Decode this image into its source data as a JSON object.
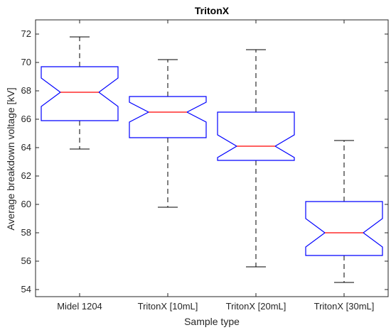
{
  "chart_data": {
    "type": "boxplot",
    "title": "TritonX",
    "xlabel": "Sample type",
    "ylabel": "Average breakdown voltage [kV]",
    "ylim": [
      53.5,
      73
    ],
    "yticks": [
      54,
      56,
      58,
      60,
      62,
      64,
      66,
      68,
      70,
      72
    ],
    "notched": true,
    "grid": false,
    "categories": [
      "Midel 1204",
      "TritonX [10mL]",
      "TritonX [20mL]",
      "TritonX [30mL]"
    ],
    "boxes": [
      {
        "category": "Midel 1204",
        "whisker_low": 63.9,
        "q1": 65.9,
        "median": 67.9,
        "q3": 69.7,
        "whisker_high": 71.8,
        "notch_low": 66.9,
        "notch_high": 68.9
      },
      {
        "category": "TritonX [10mL]",
        "whisker_low": 59.8,
        "q1": 64.7,
        "median": 66.5,
        "q3": 67.6,
        "whisker_high": 70.2,
        "notch_low": 65.8,
        "notch_high": 67.2
      },
      {
        "category": "TritonX [20mL]",
        "whisker_low": 55.6,
        "q1": 63.1,
        "median": 64.1,
        "q3": 66.5,
        "whisker_high": 70.9,
        "notch_low": 63.3,
        "notch_high": 64.9
      },
      {
        "category": "TritonX [30mL]",
        "whisker_low": 54.5,
        "q1": 56.4,
        "median": 58.0,
        "q3": 60.2,
        "whisker_high": 64.5,
        "notch_low": 57.0,
        "notch_high": 59.0
      }
    ],
    "colors": {
      "box": "#0000ff",
      "median": "#ff0000",
      "whisker": "#000000",
      "axis": "#262626"
    }
  }
}
